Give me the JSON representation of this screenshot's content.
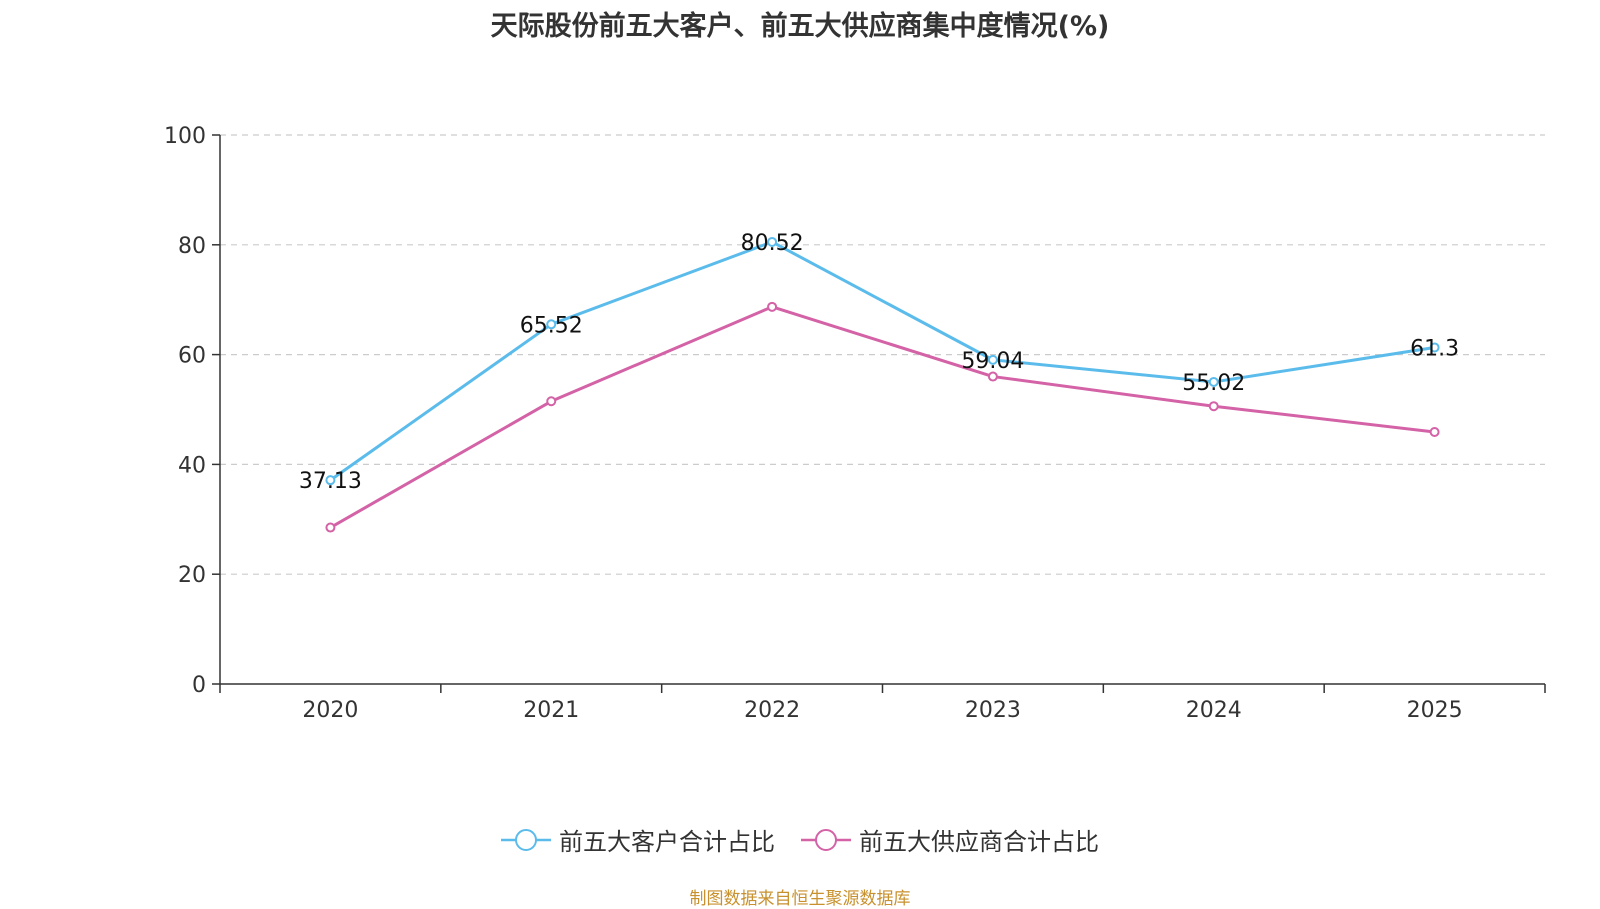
{
  "chart_data": {
    "type": "line",
    "title": "天际股份前五大客户、前五大供应商集中度情况(%)",
    "categories": [
      "2020",
      "2021",
      "2022",
      "2023",
      "2024",
      "2025"
    ],
    "ylim": [
      0,
      100
    ],
    "yticks": [
      0,
      20,
      40,
      60,
      80,
      100
    ],
    "grid": true,
    "legend_position": "bottom",
    "series": [
      {
        "name": "前五大客户合计占比",
        "color": "#5bbcec",
        "values": [
          37.13,
          65.52,
          80.52,
          59.04,
          55.02,
          61.3
        ],
        "labels": [
          "37.13",
          "65.52",
          "80.52",
          "59.04",
          "55.02",
          "61.3"
        ]
      },
      {
        "name": "前五大供应商合计占比",
        "color": "#d462a6",
        "values": [
          28.5,
          51.5,
          68.7,
          56.0,
          50.6,
          45.9
        ],
        "labels": []
      }
    ]
  },
  "source_note": "制图数据来自恒生聚源数据库"
}
